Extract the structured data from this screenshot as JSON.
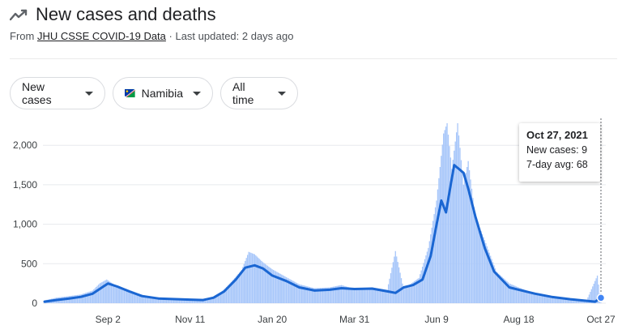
{
  "header": {
    "title": "New cases and deaths",
    "from_prefix": "From",
    "source": "JHU CSSE COVID-19 Data",
    "updated": "· Last updated: 2 days ago"
  },
  "filters": {
    "metric": "New cases",
    "country": "Namibia",
    "range": "All time"
  },
  "colors": {
    "bar": "#a8c7fa",
    "line": "#1a66d2",
    "grid": "#e8eaed",
    "axis_text": "#3c4043"
  },
  "icons": {
    "trend": "trending-up-icon",
    "flag": "namibia-flag-icon",
    "dropdown": "caret-down-icon"
  },
  "tooltip": {
    "date": "Oct 27, 2021",
    "new_cases": "New cases: 9",
    "avg": "7-day avg: 68"
  },
  "chart_data": {
    "type": "bar",
    "x_start": "2020-07-10",
    "x_end": "2021-10-27",
    "ylim": [
      0,
      2300
    ],
    "yticks": [
      0,
      500,
      1000,
      1500,
      2000
    ],
    "ytick_labels": [
      "0",
      "500",
      "1,000",
      "1,500",
      "2,000"
    ],
    "xticks": [
      {
        "date": "2020-09-02",
        "label": "Sep 2"
      },
      {
        "date": "2020-11-11",
        "label": "Nov 11"
      },
      {
        "date": "2021-01-20",
        "label": "Jan 20"
      },
      {
        "date": "2021-03-31",
        "label": "Mar 31"
      },
      {
        "date": "2021-06-09",
        "label": "Jun 9"
      },
      {
        "date": "2021-08-18",
        "label": "Aug 18"
      },
      {
        "date": "2021-10-27",
        "label": "Oct 27"
      }
    ],
    "series": [
      {
        "name": "New cases",
        "kind": "bar",
        "points": [
          {
            "date": "2020-07-10",
            "value": 35
          },
          {
            "date": "2020-07-20",
            "value": 70
          },
          {
            "date": "2020-07-31",
            "value": 90
          },
          {
            "date": "2020-08-10",
            "value": 110
          },
          {
            "date": "2020-08-20",
            "value": 160
          },
          {
            "date": "2020-08-26",
            "value": 250
          },
          {
            "date": "2020-09-01",
            "value": 300
          },
          {
            "date": "2020-09-08",
            "value": 230
          },
          {
            "date": "2020-09-18",
            "value": 180
          },
          {
            "date": "2020-09-30",
            "value": 110
          },
          {
            "date": "2020-10-10",
            "value": 80
          },
          {
            "date": "2020-10-20",
            "value": 70
          },
          {
            "date": "2020-11-01",
            "value": 55
          },
          {
            "date": "2020-11-11",
            "value": 50
          },
          {
            "date": "2020-11-22",
            "value": 45
          },
          {
            "date": "2020-12-05",
            "value": 100
          },
          {
            "date": "2020-12-15",
            "value": 250
          },
          {
            "date": "2020-12-25",
            "value": 420
          },
          {
            "date": "2020-12-31",
            "value": 650
          },
          {
            "date": "2021-01-05",
            "value": 620
          },
          {
            "date": "2021-01-12",
            "value": 520
          },
          {
            "date": "2021-01-20",
            "value": 430
          },
          {
            "date": "2021-02-01",
            "value": 330
          },
          {
            "date": "2021-02-12",
            "value": 240
          },
          {
            "date": "2021-02-25",
            "value": 190
          },
          {
            "date": "2021-03-10",
            "value": 200
          },
          {
            "date": "2021-03-20",
            "value": 230
          },
          {
            "date": "2021-03-31",
            "value": 180
          },
          {
            "date": "2021-04-15",
            "value": 200
          },
          {
            "date": "2021-04-28",
            "value": 170
          },
          {
            "date": "2021-05-05",
            "value": 660
          },
          {
            "date": "2021-05-12",
            "value": 180
          },
          {
            "date": "2021-05-25",
            "value": 320
          },
          {
            "date": "2021-06-02",
            "value": 700
          },
          {
            "date": "2021-06-09",
            "value": 1300
          },
          {
            "date": "2021-06-15",
            "value": 2150
          },
          {
            "date": "2021-06-18",
            "value": 2280
          },
          {
            "date": "2021-06-22",
            "value": 1700
          },
          {
            "date": "2021-06-27",
            "value": 2280
          },
          {
            "date": "2021-07-02",
            "value": 1500
          },
          {
            "date": "2021-07-06",
            "value": 1800
          },
          {
            "date": "2021-07-12",
            "value": 1100
          },
          {
            "date": "2021-07-20",
            "value": 800
          },
          {
            "date": "2021-07-30",
            "value": 400
          },
          {
            "date": "2021-08-10",
            "value": 250
          },
          {
            "date": "2021-08-18",
            "value": 200
          },
          {
            "date": "2021-09-01",
            "value": 120
          },
          {
            "date": "2021-09-15",
            "value": 80
          },
          {
            "date": "2021-10-01",
            "value": 60
          },
          {
            "date": "2021-10-15",
            "value": 40
          },
          {
            "date": "2021-10-24",
            "value": 350
          },
          {
            "date": "2021-10-27",
            "value": 9
          }
        ]
      },
      {
        "name": "7-day avg",
        "kind": "line",
        "points": [
          {
            "date": "2020-07-10",
            "value": 20
          },
          {
            "date": "2020-07-20",
            "value": 40
          },
          {
            "date": "2020-07-31",
            "value": 60
          },
          {
            "date": "2020-08-10",
            "value": 80
          },
          {
            "date": "2020-08-20",
            "value": 120
          },
          {
            "date": "2020-08-28",
            "value": 200
          },
          {
            "date": "2020-09-02",
            "value": 250
          },
          {
            "date": "2020-09-10",
            "value": 210
          },
          {
            "date": "2020-09-20",
            "value": 150
          },
          {
            "date": "2020-10-01",
            "value": 90
          },
          {
            "date": "2020-10-15",
            "value": 60
          },
          {
            "date": "2020-11-01",
            "value": 50
          },
          {
            "date": "2020-11-11",
            "value": 45
          },
          {
            "date": "2020-11-22",
            "value": 40
          },
          {
            "date": "2020-12-01",
            "value": 70
          },
          {
            "date": "2020-12-10",
            "value": 150
          },
          {
            "date": "2020-12-20",
            "value": 300
          },
          {
            "date": "2020-12-28",
            "value": 450
          },
          {
            "date": "2021-01-05",
            "value": 480
          },
          {
            "date": "2021-01-12",
            "value": 440
          },
          {
            "date": "2021-01-20",
            "value": 350
          },
          {
            "date": "2021-02-01",
            "value": 280
          },
          {
            "date": "2021-02-12",
            "value": 200
          },
          {
            "date": "2021-02-25",
            "value": 160
          },
          {
            "date": "2021-03-10",
            "value": 170
          },
          {
            "date": "2021-03-20",
            "value": 190
          },
          {
            "date": "2021-03-31",
            "value": 180
          },
          {
            "date": "2021-04-15",
            "value": 185
          },
          {
            "date": "2021-04-28",
            "value": 150
          },
          {
            "date": "2021-05-05",
            "value": 130
          },
          {
            "date": "2021-05-12",
            "value": 200
          },
          {
            "date": "2021-05-20",
            "value": 230
          },
          {
            "date": "2021-05-28",
            "value": 300
          },
          {
            "date": "2021-06-04",
            "value": 600
          },
          {
            "date": "2021-06-09",
            "value": 1000
          },
          {
            "date": "2021-06-13",
            "value": 1300
          },
          {
            "date": "2021-06-17",
            "value": 1150
          },
          {
            "date": "2021-06-21",
            "value": 1500
          },
          {
            "date": "2021-06-24",
            "value": 1750
          },
          {
            "date": "2021-06-28",
            "value": 1700
          },
          {
            "date": "2021-07-02",
            "value": 1650
          },
          {
            "date": "2021-07-06",
            "value": 1450
          },
          {
            "date": "2021-07-12",
            "value": 1100
          },
          {
            "date": "2021-07-20",
            "value": 700
          },
          {
            "date": "2021-07-28",
            "value": 400
          },
          {
            "date": "2021-08-10",
            "value": 200
          },
          {
            "date": "2021-08-18",
            "value": 170
          },
          {
            "date": "2021-09-01",
            "value": 120
          },
          {
            "date": "2021-09-15",
            "value": 80
          },
          {
            "date": "2021-10-01",
            "value": 50
          },
          {
            "date": "2021-10-15",
            "value": 30
          },
          {
            "date": "2021-10-22",
            "value": 20
          },
          {
            "date": "2021-10-27",
            "value": 68
          }
        ]
      }
    ]
  }
}
